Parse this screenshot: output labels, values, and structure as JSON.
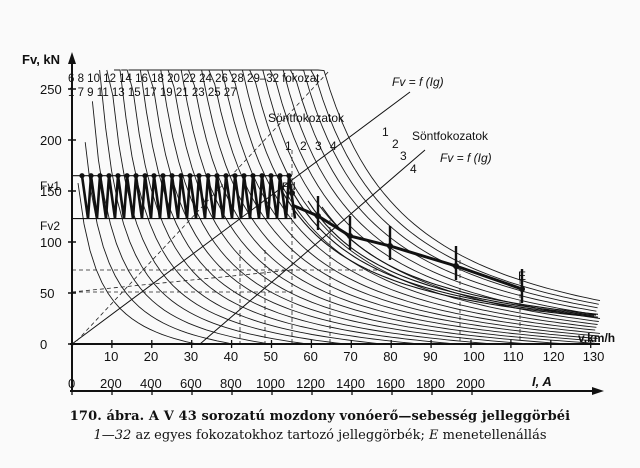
{
  "figure": {
    "y_axis_label": "Fv, kN",
    "x_axis_speed_label": "v,km/h",
    "x_axis_current_label": "I, A",
    "y_ticks": [
      "250",
      "200",
      "150",
      "100",
      "50",
      "0"
    ],
    "fv1_label": "Fv1",
    "fv2_label": "Fv2",
    "speed_ticks": [
      "10",
      "20",
      "30",
      "40",
      "50",
      "60",
      "70",
      "80",
      "90",
      "100",
      "110",
      "120",
      "130"
    ],
    "current_ticks": [
      "0",
      "200",
      "400",
      "600",
      "800",
      "1000",
      "1200",
      "1400",
      "1600",
      "1800",
      "2000"
    ],
    "notch_row_top": "6 8 10 12 14 16 18 20 22 24 26 28 29–32 fokozat",
    "notch_row_bottom": "1 7 9 11 13 15 17 19 21 23 25 27",
    "shunt_label_left": "Söntfokozatok",
    "shunt_label_right": "Söntfokozatok",
    "fv_func_top": "Fv = f (Ig)",
    "fv_func_right": "Fv = f (Ig)",
    "shunt_numbers": [
      "1",
      "2",
      "3",
      "4"
    ],
    "point_pd": "Pd",
    "point_e": "E"
  },
  "caption": {
    "number": "170. ábra.",
    "title": "A V 43 sorozatú mozdony vonóerő—sebesség jelleggörbéi",
    "range": "1—32",
    "description": "az egyes fokozatokhoz tartozó jelleggörbék;",
    "e_letter": "E",
    "e_text": "menetellenállás"
  }
}
